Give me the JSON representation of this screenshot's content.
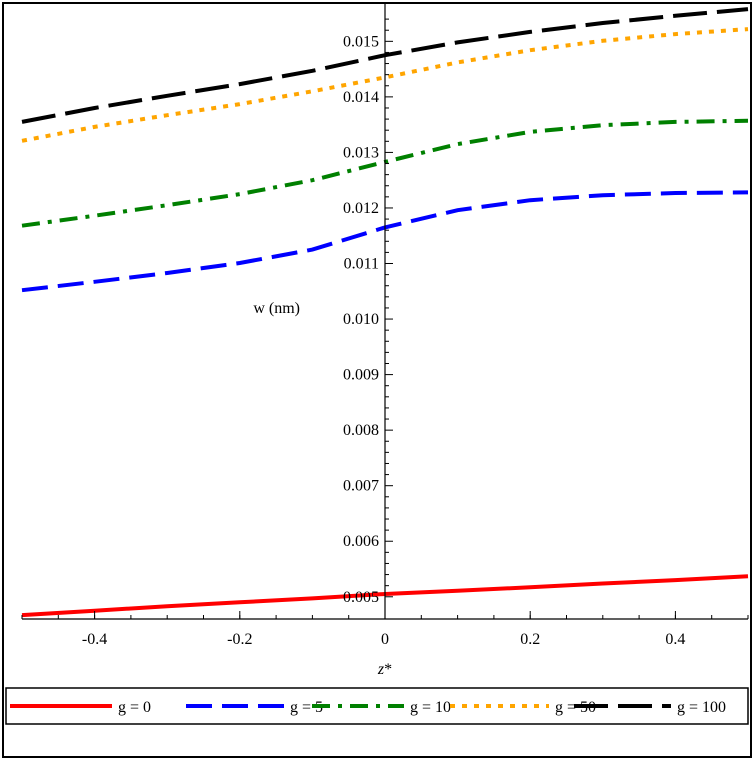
{
  "chart_data": {
    "type": "line",
    "xlabel": "z*",
    "ylabel": "w (nm)",
    "xlim": [
      -0.5,
      0.5
    ],
    "ylim": [
      0.0046,
      0.0156
    ],
    "x_ticks": [
      -0.4,
      -0.2,
      0,
      0.2,
      0.4
    ],
    "x_tick_labels": [
      "-0.4",
      "-0.2",
      "0",
      "0.2",
      "0.4"
    ],
    "y_ticks": [
      0.005,
      0.006,
      0.007,
      0.008,
      0.009,
      0.01,
      0.011,
      0.012,
      0.013,
      0.014,
      0.015
    ],
    "y_tick_labels": [
      "0.005",
      "0.006",
      "0.007",
      "0.008",
      "0.009",
      "0.010",
      "0.011",
      "0.012",
      "0.013",
      "0.014",
      "0.015"
    ],
    "grid": false,
    "legend_position": "bottom",
    "x": [
      -0.5,
      -0.4,
      -0.3,
      -0.2,
      -0.1,
      0,
      0.1,
      0.2,
      0.3,
      0.4,
      0.5
    ],
    "series": [
      {
        "name": "g = 0",
        "color": "#ff0000",
        "style": "solid",
        "values": [
          0.00467,
          0.00475,
          0.00483,
          0.0049,
          0.00497,
          0.00505,
          0.00511,
          0.00517,
          0.00524,
          0.0053,
          0.00537
        ]
      },
      {
        "name": "g = 5",
        "color": "#0000ff",
        "style": "dash",
        "values": [
          0.01052,
          0.01067,
          0.01083,
          0.01101,
          0.01125,
          0.01165,
          0.01196,
          0.01214,
          0.01223,
          0.01227,
          0.01228
        ]
      },
      {
        "name": "g = 10",
        "color": "#008000",
        "style": "dashdot",
        "values": [
          0.01168,
          0.01186,
          0.01205,
          0.01225,
          0.0125,
          0.01283,
          0.01315,
          0.01337,
          0.01349,
          0.01355,
          0.01357
        ]
      },
      {
        "name": "g = 50",
        "color": "#ffa500",
        "style": "dot",
        "values": [
          0.01321,
          0.01346,
          0.01367,
          0.01387,
          0.0141,
          0.01435,
          0.01462,
          0.01484,
          0.01501,
          0.01513,
          0.01522
        ]
      },
      {
        "name": "g = 100",
        "color": "#000000",
        "style": "longdash",
        "values": [
          0.01355,
          0.0138,
          0.01402,
          0.01423,
          0.01447,
          0.01475,
          0.01498,
          0.01517,
          0.01533,
          0.01546,
          0.01558
        ]
      }
    ]
  }
}
